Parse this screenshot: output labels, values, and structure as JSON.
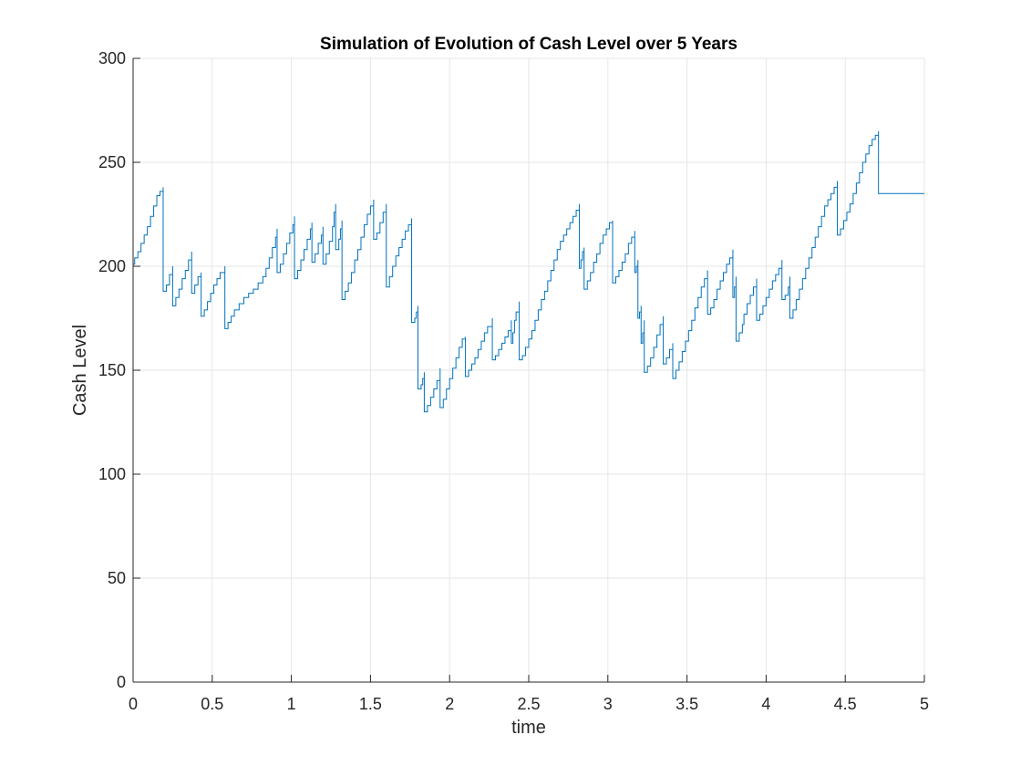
{
  "chart_data": {
    "type": "line",
    "title": "Simulation of Evolution of Cash Level over 5 Years",
    "xlabel": "time",
    "ylabel": "Cash Level",
    "xlim": [
      0,
      5
    ],
    "ylim": [
      0,
      300
    ],
    "xticks": [
      0,
      0.5,
      1,
      1.5,
      2,
      2.5,
      3,
      3.5,
      4,
      4.5,
      5
    ],
    "xtick_labels": [
      "0",
      "0.5",
      "1",
      "1.5",
      "2",
      "2.5",
      "3",
      "3.5",
      "4",
      "4.5",
      "5"
    ],
    "yticks": [
      0,
      50,
      100,
      150,
      200,
      250,
      300
    ],
    "ytick_labels": [
      "0",
      "50",
      "100",
      "150",
      "200",
      "250",
      "300"
    ],
    "grid": true,
    "line_style": "step",
    "series": [
      {
        "color": "#0072BD",
        "points": [
          [
            0.0,
            201
          ],
          [
            0.01,
            204
          ],
          [
            0.03,
            207
          ],
          [
            0.05,
            211
          ],
          [
            0.07,
            215
          ],
          [
            0.09,
            219
          ],
          [
            0.11,
            224
          ],
          [
            0.13,
            229
          ],
          [
            0.15,
            234
          ],
          [
            0.17,
            236
          ],
          [
            0.19,
            238
          ],
          [
            0.19,
            188
          ],
          [
            0.21,
            191
          ],
          [
            0.23,
            196
          ],
          [
            0.25,
            200
          ],
          [
            0.25,
            181
          ],
          [
            0.27,
            185
          ],
          [
            0.29,
            189
          ],
          [
            0.31,
            194
          ],
          [
            0.33,
            198
          ],
          [
            0.35,
            203
          ],
          [
            0.37,
            207
          ],
          [
            0.37,
            187
          ],
          [
            0.39,
            191
          ],
          [
            0.41,
            195
          ],
          [
            0.43,
            197
          ],
          [
            0.43,
            176
          ],
          [
            0.45,
            179
          ],
          [
            0.47,
            183
          ],
          [
            0.49,
            187
          ],
          [
            0.51,
            191
          ],
          [
            0.53,
            194
          ],
          [
            0.55,
            197
          ],
          [
            0.58,
            200
          ],
          [
            0.58,
            170
          ],
          [
            0.6,
            173
          ],
          [
            0.62,
            176
          ],
          [
            0.64,
            179
          ],
          [
            0.67,
            182
          ],
          [
            0.7,
            185
          ],
          [
            0.73,
            187
          ],
          [
            0.76,
            189
          ],
          [
            0.79,
            192
          ],
          [
            0.82,
            195
          ],
          [
            0.84,
            199
          ],
          [
            0.86,
            204
          ],
          [
            0.88,
            209
          ],
          [
            0.9,
            214
          ],
          [
            0.91,
            218
          ],
          [
            0.91,
            197
          ],
          [
            0.93,
            201
          ],
          [
            0.95,
            206
          ],
          [
            0.97,
            211
          ],
          [
            0.99,
            216
          ],
          [
            1.01,
            220
          ],
          [
            1.02,
            224
          ],
          [
            1.02,
            194
          ],
          [
            1.04,
            198
          ],
          [
            1.06,
            203
          ],
          [
            1.08,
            208
          ],
          [
            1.1,
            213
          ],
          [
            1.12,
            218
          ],
          [
            1.13,
            221
          ],
          [
            1.13,
            202
          ],
          [
            1.15,
            206
          ],
          [
            1.17,
            211
          ],
          [
            1.19,
            215
          ],
          [
            1.2,
            219
          ],
          [
            1.2,
            201
          ],
          [
            1.22,
            206
          ],
          [
            1.24,
            212
          ],
          [
            1.26,
            219
          ],
          [
            1.27,
            226
          ],
          [
            1.28,
            230
          ],
          [
            1.28,
            208
          ],
          [
            1.3,
            213
          ],
          [
            1.31,
            218
          ],
          [
            1.32,
            222
          ],
          [
            1.32,
            184
          ],
          [
            1.34,
            188
          ],
          [
            1.36,
            192
          ],
          [
            1.38,
            197
          ],
          [
            1.4,
            203
          ],
          [
            1.42,
            208
          ],
          [
            1.44,
            214
          ],
          [
            1.46,
            220
          ],
          [
            1.48,
            225
          ],
          [
            1.5,
            229
          ],
          [
            1.52,
            232
          ],
          [
            1.52,
            213
          ],
          [
            1.54,
            216
          ],
          [
            1.56,
            221
          ],
          [
            1.58,
            226
          ],
          [
            1.6,
            230
          ],
          [
            1.6,
            190
          ],
          [
            1.62,
            195
          ],
          [
            1.64,
            200
          ],
          [
            1.66,
            205
          ],
          [
            1.68,
            209
          ],
          [
            1.7,
            213
          ],
          [
            1.72,
            217
          ],
          [
            1.74,
            220
          ],
          [
            1.76,
            223
          ],
          [
            1.76,
            173
          ],
          [
            1.78,
            175
          ],
          [
            1.79,
            178
          ],
          [
            1.8,
            181
          ],
          [
            1.8,
            141
          ],
          [
            1.82,
            143
          ],
          [
            1.83,
            146
          ],
          [
            1.84,
            149
          ],
          [
            1.84,
            130
          ],
          [
            1.86,
            133
          ],
          [
            1.88,
            137
          ],
          [
            1.9,
            141
          ],
          [
            1.92,
            145
          ],
          [
            1.94,
            151
          ],
          [
            1.94,
            132
          ],
          [
            1.96,
            136
          ],
          [
            1.98,
            141
          ],
          [
            2.0,
            146
          ],
          [
            2.02,
            151
          ],
          [
            2.04,
            156
          ],
          [
            2.06,
            161
          ],
          [
            2.08,
            165
          ],
          [
            2.1,
            166
          ],
          [
            2.1,
            147
          ],
          [
            2.12,
            150
          ],
          [
            2.14,
            153
          ],
          [
            2.16,
            156
          ],
          [
            2.18,
            160
          ],
          [
            2.2,
            164
          ],
          [
            2.22,
            168
          ],
          [
            2.24,
            171
          ],
          [
            2.27,
            175
          ],
          [
            2.27,
            155
          ],
          [
            2.29,
            157
          ],
          [
            2.31,
            160
          ],
          [
            2.33,
            163
          ],
          [
            2.35,
            166
          ],
          [
            2.37,
            169
          ],
          [
            2.39,
            174
          ],
          [
            2.39,
            163
          ],
          [
            2.4,
            168
          ],
          [
            2.41,
            174
          ],
          [
            2.42,
            178
          ],
          [
            2.44,
            183
          ],
          [
            2.44,
            155
          ],
          [
            2.46,
            157
          ],
          [
            2.48,
            161
          ],
          [
            2.5,
            165
          ],
          [
            2.52,
            169
          ],
          [
            2.54,
            174
          ],
          [
            2.56,
            179
          ],
          [
            2.58,
            184
          ],
          [
            2.6,
            188
          ],
          [
            2.62,
            193
          ],
          [
            2.64,
            198
          ],
          [
            2.66,
            203
          ],
          [
            2.68,
            208
          ],
          [
            2.7,
            212
          ],
          [
            2.72,
            215
          ],
          [
            2.74,
            218
          ],
          [
            2.76,
            221
          ],
          [
            2.78,
            224
          ],
          [
            2.8,
            227
          ],
          [
            2.82,
            230
          ],
          [
            2.82,
            199
          ],
          [
            2.83,
            203
          ],
          [
            2.84,
            207
          ],
          [
            2.85,
            209
          ],
          [
            2.85,
            189
          ],
          [
            2.87,
            193
          ],
          [
            2.89,
            197
          ],
          [
            2.91,
            202
          ],
          [
            2.93,
            206
          ],
          [
            2.95,
            211
          ],
          [
            2.97,
            215
          ],
          [
            2.99,
            218
          ],
          [
            3.01,
            221
          ],
          [
            3.03,
            222
          ],
          [
            3.03,
            192
          ],
          [
            3.05,
            195
          ],
          [
            3.07,
            198
          ],
          [
            3.09,
            202
          ],
          [
            3.11,
            206
          ],
          [
            3.13,
            211
          ],
          [
            3.15,
            214
          ],
          [
            3.17,
            217
          ],
          [
            3.17,
            197
          ],
          [
            3.18,
            200
          ],
          [
            3.19,
            203
          ],
          [
            3.19,
            175
          ],
          [
            3.2,
            178
          ],
          [
            3.21,
            181
          ],
          [
            3.21,
            163
          ],
          [
            3.22,
            168
          ],
          [
            3.23,
            174
          ],
          [
            3.23,
            149
          ],
          [
            3.25,
            152
          ],
          [
            3.27,
            156
          ],
          [
            3.29,
            161
          ],
          [
            3.31,
            167
          ],
          [
            3.33,
            172
          ],
          [
            3.35,
            176
          ],
          [
            3.35,
            153
          ],
          [
            3.37,
            156
          ],
          [
            3.39,
            160
          ],
          [
            3.41,
            163
          ],
          [
            3.41,
            146
          ],
          [
            3.43,
            150
          ],
          [
            3.45,
            154
          ],
          [
            3.47,
            159
          ],
          [
            3.49,
            164
          ],
          [
            3.51,
            169
          ],
          [
            3.53,
            174
          ],
          [
            3.55,
            180
          ],
          [
            3.57,
            185
          ],
          [
            3.59,
            190
          ],
          [
            3.61,
            194
          ],
          [
            3.63,
            198
          ],
          [
            3.63,
            177
          ],
          [
            3.65,
            180
          ],
          [
            3.67,
            184
          ],
          [
            3.69,
            189
          ],
          [
            3.71,
            193
          ],
          [
            3.73,
            197
          ],
          [
            3.75,
            201
          ],
          [
            3.77,
            204
          ],
          [
            3.79,
            208
          ],
          [
            3.79,
            185
          ],
          [
            3.8,
            190
          ],
          [
            3.81,
            195
          ],
          [
            3.81,
            164
          ],
          [
            3.83,
            168
          ],
          [
            3.85,
            172
          ],
          [
            3.86,
            177
          ],
          [
            3.88,
            182
          ],
          [
            3.9,
            186
          ],
          [
            3.92,
            190
          ],
          [
            3.94,
            194
          ],
          [
            3.94,
            174
          ],
          [
            3.96,
            177
          ],
          [
            3.98,
            181
          ],
          [
            4.0,
            185
          ],
          [
            4.02,
            189
          ],
          [
            4.04,
            193
          ],
          [
            4.06,
            196
          ],
          [
            4.08,
            199
          ],
          [
            4.1,
            203
          ],
          [
            4.1,
            184
          ],
          [
            4.12,
            186
          ],
          [
            4.14,
            190
          ],
          [
            4.15,
            195
          ],
          [
            4.15,
            175
          ],
          [
            4.17,
            179
          ],
          [
            4.19,
            184
          ],
          [
            4.21,
            189
          ],
          [
            4.23,
            194
          ],
          [
            4.25,
            199
          ],
          [
            4.27,
            204
          ],
          [
            4.29,
            209
          ],
          [
            4.31,
            214
          ],
          [
            4.33,
            219
          ],
          [
            4.35,
            224
          ],
          [
            4.37,
            229
          ],
          [
            4.39,
            232
          ],
          [
            4.41,
            235
          ],
          [
            4.43,
            238
          ],
          [
            4.45,
            241
          ],
          [
            4.45,
            215
          ],
          [
            4.47,
            218
          ],
          [
            4.49,
            222
          ],
          [
            4.51,
            226
          ],
          [
            4.53,
            230
          ],
          [
            4.55,
            235
          ],
          [
            4.57,
            240
          ],
          [
            4.59,
            245
          ],
          [
            4.61,
            250
          ],
          [
            4.63,
            254
          ],
          [
            4.65,
            258
          ],
          [
            4.67,
            261
          ],
          [
            4.69,
            263
          ],
          [
            4.71,
            265
          ],
          [
            4.71,
            235
          ],
          [
            5.0,
            235
          ]
        ]
      }
    ]
  }
}
